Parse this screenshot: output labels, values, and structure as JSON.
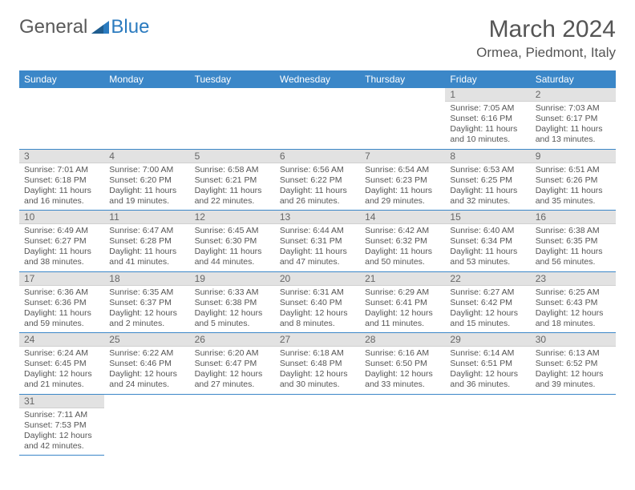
{
  "brand": {
    "part1": "General",
    "part2": "Blue"
  },
  "title": "March 2024",
  "location": "Ormea, Piedmont, Italy",
  "colors": {
    "header_bg": "#3b87c8",
    "header_fg": "#ffffff",
    "daynum_bg": "#e2e2e2",
    "rule": "#3b87c8",
    "text": "#555555"
  },
  "weekdays": [
    "Sunday",
    "Monday",
    "Tuesday",
    "Wednesday",
    "Thursday",
    "Friday",
    "Saturday"
  ],
  "weeks": [
    [
      null,
      null,
      null,
      null,
      null,
      {
        "n": "1",
        "sr": "Sunrise: 7:05 AM",
        "ss": "Sunset: 6:16 PM",
        "dl1": "Daylight: 11 hours",
        "dl2": "and 10 minutes."
      },
      {
        "n": "2",
        "sr": "Sunrise: 7:03 AM",
        "ss": "Sunset: 6:17 PM",
        "dl1": "Daylight: 11 hours",
        "dl2": "and 13 minutes."
      }
    ],
    [
      {
        "n": "3",
        "sr": "Sunrise: 7:01 AM",
        "ss": "Sunset: 6:18 PM",
        "dl1": "Daylight: 11 hours",
        "dl2": "and 16 minutes."
      },
      {
        "n": "4",
        "sr": "Sunrise: 7:00 AM",
        "ss": "Sunset: 6:20 PM",
        "dl1": "Daylight: 11 hours",
        "dl2": "and 19 minutes."
      },
      {
        "n": "5",
        "sr": "Sunrise: 6:58 AM",
        "ss": "Sunset: 6:21 PM",
        "dl1": "Daylight: 11 hours",
        "dl2": "and 22 minutes."
      },
      {
        "n": "6",
        "sr": "Sunrise: 6:56 AM",
        "ss": "Sunset: 6:22 PM",
        "dl1": "Daylight: 11 hours",
        "dl2": "and 26 minutes."
      },
      {
        "n": "7",
        "sr": "Sunrise: 6:54 AM",
        "ss": "Sunset: 6:23 PM",
        "dl1": "Daylight: 11 hours",
        "dl2": "and 29 minutes."
      },
      {
        "n": "8",
        "sr": "Sunrise: 6:53 AM",
        "ss": "Sunset: 6:25 PM",
        "dl1": "Daylight: 11 hours",
        "dl2": "and 32 minutes."
      },
      {
        "n": "9",
        "sr": "Sunrise: 6:51 AM",
        "ss": "Sunset: 6:26 PM",
        "dl1": "Daylight: 11 hours",
        "dl2": "and 35 minutes."
      }
    ],
    [
      {
        "n": "10",
        "sr": "Sunrise: 6:49 AM",
        "ss": "Sunset: 6:27 PM",
        "dl1": "Daylight: 11 hours",
        "dl2": "and 38 minutes."
      },
      {
        "n": "11",
        "sr": "Sunrise: 6:47 AM",
        "ss": "Sunset: 6:28 PM",
        "dl1": "Daylight: 11 hours",
        "dl2": "and 41 minutes."
      },
      {
        "n": "12",
        "sr": "Sunrise: 6:45 AM",
        "ss": "Sunset: 6:30 PM",
        "dl1": "Daylight: 11 hours",
        "dl2": "and 44 minutes."
      },
      {
        "n": "13",
        "sr": "Sunrise: 6:44 AM",
        "ss": "Sunset: 6:31 PM",
        "dl1": "Daylight: 11 hours",
        "dl2": "and 47 minutes."
      },
      {
        "n": "14",
        "sr": "Sunrise: 6:42 AM",
        "ss": "Sunset: 6:32 PM",
        "dl1": "Daylight: 11 hours",
        "dl2": "and 50 minutes."
      },
      {
        "n": "15",
        "sr": "Sunrise: 6:40 AM",
        "ss": "Sunset: 6:34 PM",
        "dl1": "Daylight: 11 hours",
        "dl2": "and 53 minutes."
      },
      {
        "n": "16",
        "sr": "Sunrise: 6:38 AM",
        "ss": "Sunset: 6:35 PM",
        "dl1": "Daylight: 11 hours",
        "dl2": "and 56 minutes."
      }
    ],
    [
      {
        "n": "17",
        "sr": "Sunrise: 6:36 AM",
        "ss": "Sunset: 6:36 PM",
        "dl1": "Daylight: 11 hours",
        "dl2": "and 59 minutes."
      },
      {
        "n": "18",
        "sr": "Sunrise: 6:35 AM",
        "ss": "Sunset: 6:37 PM",
        "dl1": "Daylight: 12 hours",
        "dl2": "and 2 minutes."
      },
      {
        "n": "19",
        "sr": "Sunrise: 6:33 AM",
        "ss": "Sunset: 6:38 PM",
        "dl1": "Daylight: 12 hours",
        "dl2": "and 5 minutes."
      },
      {
        "n": "20",
        "sr": "Sunrise: 6:31 AM",
        "ss": "Sunset: 6:40 PM",
        "dl1": "Daylight: 12 hours",
        "dl2": "and 8 minutes."
      },
      {
        "n": "21",
        "sr": "Sunrise: 6:29 AM",
        "ss": "Sunset: 6:41 PM",
        "dl1": "Daylight: 12 hours",
        "dl2": "and 11 minutes."
      },
      {
        "n": "22",
        "sr": "Sunrise: 6:27 AM",
        "ss": "Sunset: 6:42 PM",
        "dl1": "Daylight: 12 hours",
        "dl2": "and 15 minutes."
      },
      {
        "n": "23",
        "sr": "Sunrise: 6:25 AM",
        "ss": "Sunset: 6:43 PM",
        "dl1": "Daylight: 12 hours",
        "dl2": "and 18 minutes."
      }
    ],
    [
      {
        "n": "24",
        "sr": "Sunrise: 6:24 AM",
        "ss": "Sunset: 6:45 PM",
        "dl1": "Daylight: 12 hours",
        "dl2": "and 21 minutes."
      },
      {
        "n": "25",
        "sr": "Sunrise: 6:22 AM",
        "ss": "Sunset: 6:46 PM",
        "dl1": "Daylight: 12 hours",
        "dl2": "and 24 minutes."
      },
      {
        "n": "26",
        "sr": "Sunrise: 6:20 AM",
        "ss": "Sunset: 6:47 PM",
        "dl1": "Daylight: 12 hours",
        "dl2": "and 27 minutes."
      },
      {
        "n": "27",
        "sr": "Sunrise: 6:18 AM",
        "ss": "Sunset: 6:48 PM",
        "dl1": "Daylight: 12 hours",
        "dl2": "and 30 minutes."
      },
      {
        "n": "28",
        "sr": "Sunrise: 6:16 AM",
        "ss": "Sunset: 6:50 PM",
        "dl1": "Daylight: 12 hours",
        "dl2": "and 33 minutes."
      },
      {
        "n": "29",
        "sr": "Sunrise: 6:14 AM",
        "ss": "Sunset: 6:51 PM",
        "dl1": "Daylight: 12 hours",
        "dl2": "and 36 minutes."
      },
      {
        "n": "30",
        "sr": "Sunrise: 6:13 AM",
        "ss": "Sunset: 6:52 PM",
        "dl1": "Daylight: 12 hours",
        "dl2": "and 39 minutes."
      }
    ],
    [
      {
        "n": "31",
        "sr": "Sunrise: 7:11 AM",
        "ss": "Sunset: 7:53 PM",
        "dl1": "Daylight: 12 hours",
        "dl2": "and 42 minutes."
      },
      null,
      null,
      null,
      null,
      null,
      null
    ]
  ]
}
